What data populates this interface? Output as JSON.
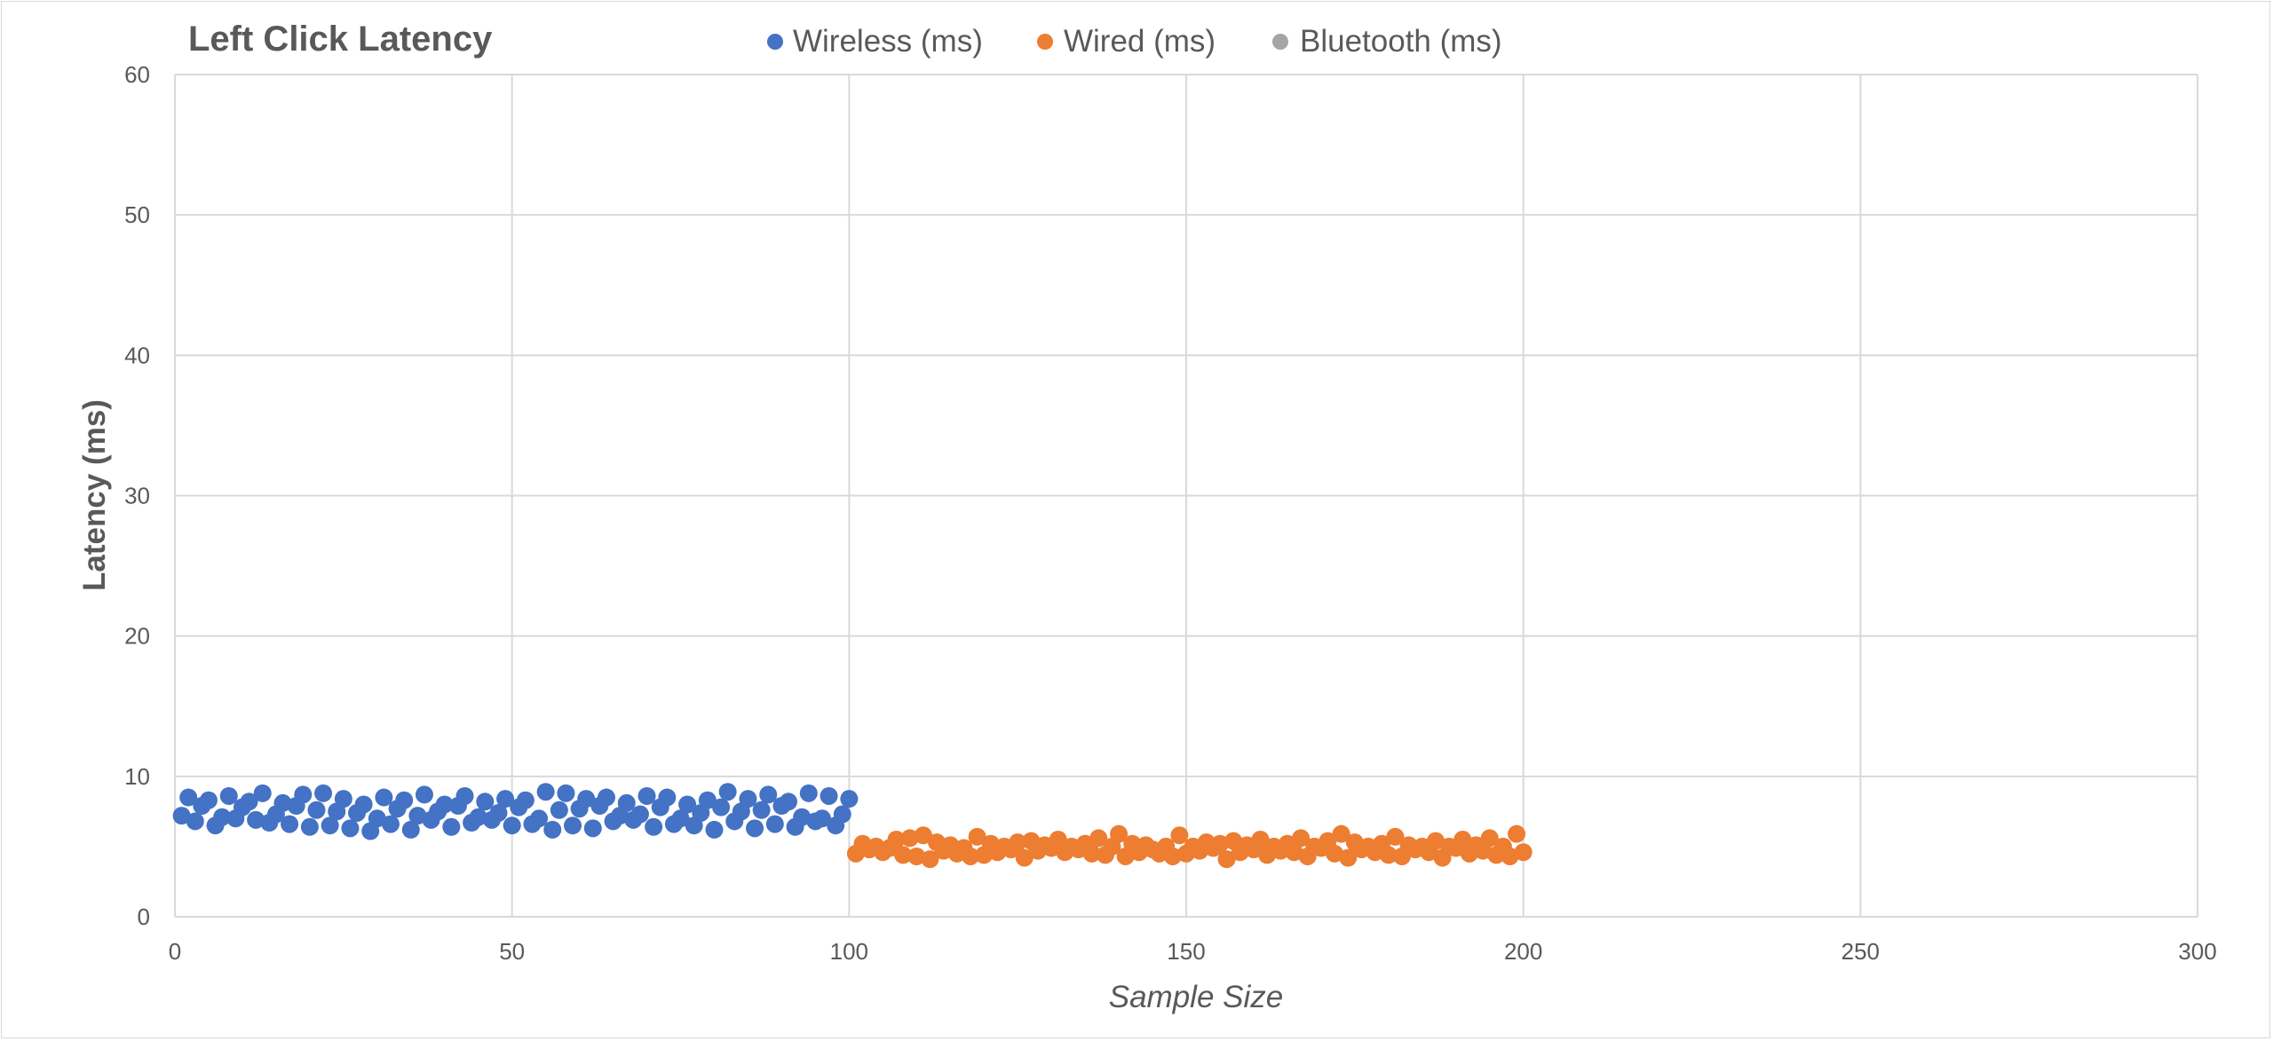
{
  "chart_data": {
    "type": "scatter",
    "title": "Left Click Latency",
    "xlabel": "Sample Size",
    "ylabel": "Latency (ms)",
    "xlim": [
      0,
      300
    ],
    "ylim": [
      0,
      60
    ],
    "xticks": [
      0,
      50,
      100,
      150,
      200,
      250,
      300
    ],
    "yticks": [
      0,
      10,
      20,
      30,
      40,
      50,
      60
    ],
    "grid": true,
    "legend_position": "top",
    "series": [
      {
        "name": "Wireless (ms)",
        "color": "#4472C4",
        "x_start": 1,
        "values": [
          7.2,
          8.5,
          6.8,
          7.9,
          8.3,
          6.5,
          7.1,
          8.6,
          7.0,
          7.8,
          8.2,
          6.9,
          8.8,
          6.7,
          7.3,
          8.1,
          6.6,
          7.9,
          8.7,
          6.4,
          7.6,
          8.8,
          6.5,
          7.5,
          8.4,
          6.3,
          7.4,
          8.0,
          6.1,
          7.0,
          8.5,
          6.6,
          7.7,
          8.3,
          6.2,
          7.2,
          8.7,
          6.9,
          7.5,
          8.0,
          6.4,
          7.9,
          8.6,
          6.7,
          7.1,
          8.2,
          6.9,
          7.4,
          8.4,
          6.5,
          7.8,
          8.3,
          6.6,
          7.0,
          8.9,
          6.2,
          7.6,
          8.8,
          6.5,
          7.7,
          8.4,
          6.3,
          7.9,
          8.5,
          6.8,
          7.2,
          8.1,
          6.9,
          7.3,
          8.6,
          6.4,
          7.8,
          8.5,
          6.6,
          7.0,
          8.0,
          6.5,
          7.4,
          8.3,
          6.2,
          7.8,
          8.9,
          6.8,
          7.5,
          8.4,
          6.3,
          7.6,
          8.7,
          6.6,
          7.9,
          8.2,
          6.4,
          7.1,
          8.8,
          6.8,
          7.0,
          8.6,
          6.5,
          7.3,
          8.4
        ]
      },
      {
        "name": "Wired (ms)",
        "color": "#ED7D31",
        "x_start": 101,
        "values": [
          4.5,
          5.2,
          4.8,
          5.0,
          4.6,
          4.9,
          5.5,
          4.4,
          5.6,
          4.3,
          5.8,
          4.1,
          5.3,
          4.7,
          5.1,
          4.5,
          4.9,
          4.3,
          5.7,
          4.4,
          5.2,
          4.6,
          5.0,
          4.8,
          5.3,
          4.2,
          5.4,
          4.7,
          5.1,
          4.9,
          5.5,
          4.6,
          5.0,
          4.8,
          5.2,
          4.5,
          5.6,
          4.4,
          5.0,
          5.9,
          4.3,
          5.2,
          4.6,
          5.1,
          4.8,
          4.5,
          5.0,
          4.3,
          5.8,
          4.5,
          5.0,
          4.7,
          5.3,
          4.9,
          5.2,
          4.1,
          5.4,
          4.6,
          5.1,
          4.8,
          5.5,
          4.4,
          5.0,
          4.7,
          5.2,
          4.6,
          5.6,
          4.3,
          5.0,
          4.9,
          5.4,
          4.5,
          5.9,
          4.2,
          5.3,
          4.8,
          5.0,
          4.6,
          5.2,
          4.4,
          5.7,
          4.3,
          5.1,
          4.8,
          5.0,
          4.6,
          5.4,
          4.2,
          5.0,
          4.9,
          5.5,
          4.5,
          5.1,
          4.7,
          5.6,
          4.4,
          5.0,
          4.3,
          5.9,
          4.6
        ]
      },
      {
        "name": "Bluetooth (ms)",
        "color": "#A5A5A5",
        "x_start": 201,
        "values": []
      }
    ]
  }
}
